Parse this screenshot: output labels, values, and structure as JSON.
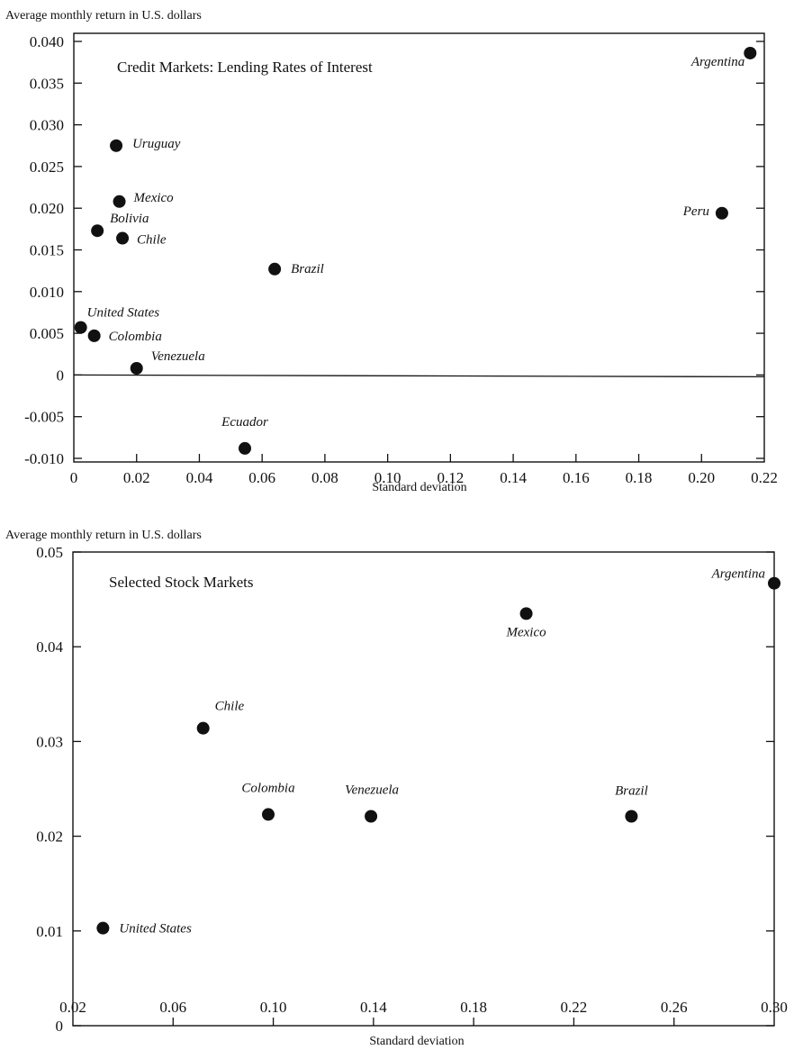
{
  "chart_data": [
    {
      "type": "scatter",
      "title": "Credit Markets:  Lending Rates of Interest",
      "ylabel": "Average monthly return in U.S. dollars",
      "xlabel": "Standard deviation",
      "xlim": [
        0,
        0.22
      ],
      "ylim": [
        -0.01,
        0.04
      ],
      "xticks": [
        "0",
        "0.02",
        "0.04",
        "0.06",
        "0.08",
        "0.10",
        "0.12",
        "0.14",
        "0.16",
        "0.18",
        "0.20",
        "0.22"
      ],
      "yticks": [
        "0.040",
        "0.035",
        "0.030",
        "0.025",
        "0.020",
        "0.015",
        "0.010",
        "0.005",
        "0",
        "-0.005",
        "-0.010"
      ],
      "zero_line": true,
      "grid": false,
      "points": [
        {
          "label": "Argentina",
          "x": 0.2155,
          "y": 0.0386
        },
        {
          "label": "Uruguay",
          "x": 0.0135,
          "y": 0.0275
        },
        {
          "label": "Mexico",
          "x": 0.0145,
          "y": 0.0208
        },
        {
          "label": "Bolivia",
          "x": 0.0075,
          "y": 0.0173
        },
        {
          "label": "Chile",
          "x": 0.0155,
          "y": 0.0164
        },
        {
          "label": "Peru",
          "x": 0.2065,
          "y": 0.0194
        },
        {
          "label": "Brazil",
          "x": 0.064,
          "y": 0.0127
        },
        {
          "label": "United States",
          "x": 0.0022,
          "y": 0.0057
        },
        {
          "label": "Colombia",
          "x": 0.0065,
          "y": 0.0047
        },
        {
          "label": "Venezuela",
          "x": 0.02,
          "y": 0.0008
        },
        {
          "label": "Ecuador",
          "x": 0.0545,
          "y": -0.0088
        }
      ]
    },
    {
      "type": "scatter",
      "title": "Selected Stock Markets",
      "ylabel": "Average monthly return in U.S. dollars",
      "xlabel": "Standard deviation",
      "xlim": [
        0.02,
        0.3
      ],
      "ylim": [
        0,
        0.05
      ],
      "xticks": [
        "0.02",
        "0.06",
        "0.10",
        "0.14",
        "0.18",
        "0.22",
        "0.26",
        "0.30"
      ],
      "yticks": [
        "0.05",
        "0.04",
        "0.03",
        "0.02",
        "0.01",
        "0"
      ],
      "zero_line": false,
      "grid": false,
      "points": [
        {
          "label": "Argentina",
          "x": 0.3,
          "y": 0.0467
        },
        {
          "label": "Mexico",
          "x": 0.201,
          "y": 0.0435
        },
        {
          "label": "Chile",
          "x": 0.072,
          "y": 0.0314
        },
        {
          "label": "Colombia",
          "x": 0.098,
          "y": 0.0223
        },
        {
          "label": "Venezuela",
          "x": 0.139,
          "y": 0.0221
        },
        {
          "label": "Brazil",
          "x": 0.243,
          "y": 0.0221
        },
        {
          "label": "United States",
          "x": 0.032,
          "y": 0.0103
        }
      ]
    }
  ]
}
